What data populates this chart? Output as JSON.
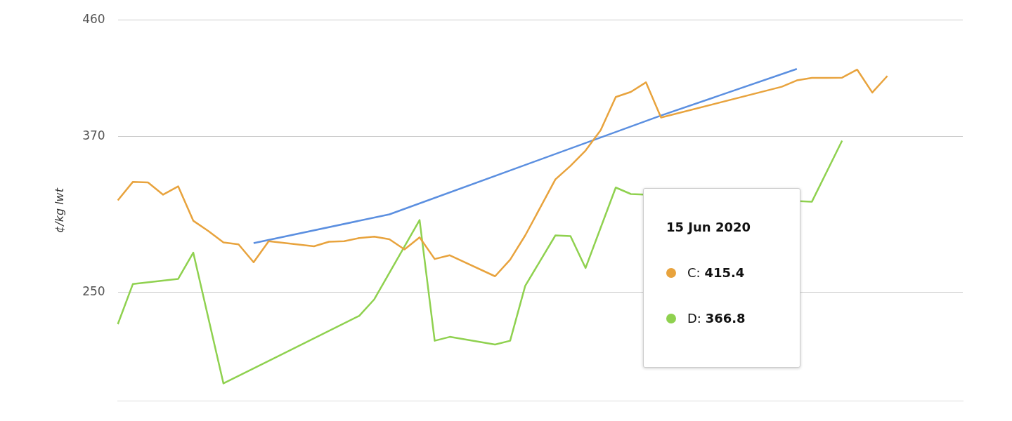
{
  "chart_data": {
    "type": "line",
    "ylabel": "¢/kg lwt",
    "categories": [
      null,
      null,
      null,
      null,
      null,
      null,
      null,
      null,
      null,
      null,
      null,
      null,
      null,
      null,
      null,
      null,
      null,
      null,
      null,
      null,
      null,
      null,
      null,
      null,
      null,
      null,
      null,
      null,
      null,
      null,
      null,
      null,
      null,
      null,
      null,
      null,
      null,
      null,
      null,
      null,
      null,
      null,
      null,
      null,
      null,
      null,
      null,
      null,
      null,
      null,
      null,
      null,
      null,
      null,
      null,
      null,
      null
    ],
    "series": [
      {
        "name": "C:",
        "color": "#e8a33d",
        "values": [
          320.8,
          335.1,
          334.6,
          325.2,
          331.6,
          305.1,
          297.2,
          288.4,
          286.9,
          273.1,
          289.3,
          null,
          null,
          285.4,
          288.9,
          289.3,
          291.8,
          292.8,
          290.8,
          283.0,
          292.3,
          275.6,
          278.5,
          null,
          null,
          262.3,
          275.1,
          293.8,
          315.4,
          337.0,
          347.4,
          359.2,
          374.9,
          400.5,
          404.4,
          411.8,
          384.7,
          null,
          null,
          null,
          null,
          null,
          null,
          null,
          408.4,
          413.3,
          415.2,
          415.2,
          415.4,
          421.6,
          403.9,
          416.7,
          null,
          null,
          null,
          null,
          null
        ]
      },
      {
        "name": "D:",
        "color": "#8fd14f",
        "values": [
          225.4,
          256.4,
          null,
          null,
          260.3,
          280.5,
          null,
          179.7,
          null,
          null,
          null,
          null,
          null,
          null,
          null,
          null,
          231.8,
          244.6,
          null,
          null,
          305.6,
          212.6,
          215.6,
          null,
          null,
          209.7,
          212.6,
          254.9,
          null,
          293.8,
          293.3,
          268.7,
          null,
          330.7,
          325.7,
          null,
          null,
          null,
          null,
          null,
          null,
          null,
          null,
          null,
          null,
          null,
          319.8,
          null,
          366.8,
          null,
          null,
          null,
          null,
          null,
          null,
          null,
          null
        ]
      },
      {
        "type": "line",
        "color": "#5b8fe0",
        "values": [
          null,
          null,
          null,
          null,
          null,
          null,
          null,
          null,
          null,
          287.9,
          null,
          null,
          null,
          null,
          null,
          null,
          null,
          null,
          310.0,
          null,
          null,
          null,
          null,
          null,
          null,
          null,
          null,
          null,
          null,
          null,
          null,
          null,
          null,
          null,
          null,
          null,
          386.2,
          null,
          null,
          null,
          null,
          null,
          null,
          null,
          null,
          422.1,
          null,
          null,
          null,
          null,
          null,
          null,
          null,
          null,
          null,
          null,
          null
        ]
      }
    ],
    "ylim": [
      166,
      460
    ],
    "yticks": [
      250,
      370,
      460
    ],
    "grid": "y",
    "legend": "right",
    "marker": "none",
    "line_style": "solid",
    "annotations": [
      "15 Jun 2020",
      "415.4",
      "366.8"
    ]
  }
}
